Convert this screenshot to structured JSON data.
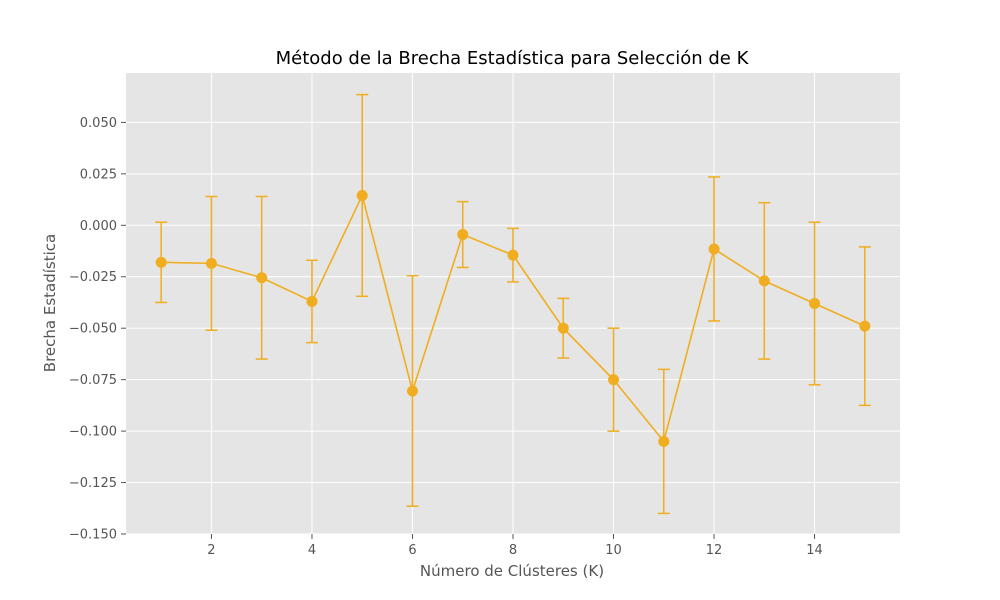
{
  "chart_data": {
    "type": "line",
    "title": "Método de la Brecha Estadística para Selección de K",
    "xlabel": "Número de Clústeres (K)",
    "ylabel": "Brecha Estadística",
    "xlim": [
      0.3,
      15.7
    ],
    "ylim": [
      -0.15,
      0.074
    ],
    "xticks": [
      2,
      4,
      6,
      8,
      10,
      12,
      14
    ],
    "xtick_labels": [
      "2",
      "4",
      "6",
      "8",
      "10",
      "12",
      "14"
    ],
    "yticks": [
      -0.15,
      -0.125,
      -0.1,
      -0.075,
      -0.05,
      -0.025,
      0.0,
      0.025,
      0.05
    ],
    "ytick_labels": [
      "−0.150",
      "−0.125",
      "−0.100",
      "−0.075",
      "−0.050",
      "−0.025",
      "0.000",
      "0.025",
      "0.050"
    ],
    "grid": true,
    "colors": {
      "series": "#f0ad1f",
      "plot_bg": "#e5e5e5",
      "grid": "#ffffff"
    },
    "series": [
      {
        "x": [
          1,
          2,
          3,
          4,
          5,
          6,
          7,
          8,
          9,
          10,
          11,
          12,
          13,
          14,
          15
        ],
        "y": [
          -0.018,
          -0.0185,
          -0.0255,
          -0.037,
          0.0145,
          -0.0805,
          -0.0045,
          -0.0145,
          -0.05,
          -0.075,
          -0.105,
          -0.0115,
          -0.027,
          -0.038,
          -0.049
        ],
        "error": [
          0.0195,
          0.0325,
          0.0395,
          0.02,
          0.049,
          0.056,
          0.016,
          0.013,
          0.0145,
          0.025,
          0.035,
          0.035,
          0.038,
          0.0395,
          0.0385
        ]
      }
    ]
  }
}
